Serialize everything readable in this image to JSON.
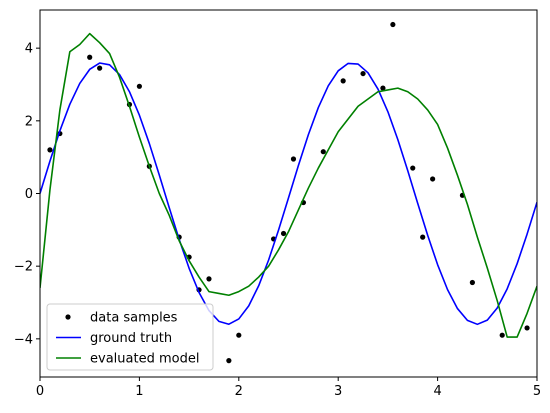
{
  "chart_data": {
    "type": "line",
    "title": "",
    "xlabel": "",
    "ylabel": "",
    "xlim": [
      0,
      5
    ],
    "ylim": [
      -5.05,
      5.05
    ],
    "xticks": [
      "0",
      "1",
      "2",
      "3",
      "4",
      "5"
    ],
    "yticks": [
      "−4",
      "−2",
      "0",
      "2",
      "4"
    ],
    "grid": false,
    "legend_position": "bottom-left",
    "series": [
      {
        "name": "data samples",
        "kind": "scatter",
        "color": "#000000",
        "x": [
          0.1,
          0.2,
          0.5,
          0.6,
          0.9,
          1.0,
          1.1,
          1.4,
          1.5,
          1.6,
          1.7,
          1.9,
          2.0,
          2.35,
          2.45,
          2.55,
          2.65,
          2.85,
          3.05,
          3.25,
          3.45,
          3.55,
          3.75,
          3.85,
          3.95,
          4.25,
          4.35,
          4.65,
          4.9
        ],
        "y": [
          1.2,
          1.65,
          3.75,
          3.45,
          2.45,
          2.95,
          0.75,
          -1.2,
          -1.75,
          -2.65,
          -2.35,
          -4.6,
          -3.9,
          -1.25,
          -1.1,
          0.95,
          -0.25,
          1.15,
          3.1,
          3.3,
          2.9,
          4.65,
          0.7,
          -1.2,
          0.4,
          -0.05,
          -2.45,
          -3.9,
          -3.7
        ]
      },
      {
        "name": "ground truth",
        "kind": "line",
        "color": "#0000ff",
        "function": "3.6*sin(1/0.4*x)",
        "x_range": [
          0,
          5
        ],
        "samples": 51
      },
      {
        "name": "evaluated model",
        "kind": "line",
        "color": "#008000",
        "x": [
          0,
          0.1,
          0.2,
          0.3,
          0.4,
          0.5,
          0.6,
          0.7,
          0.8,
          0.9,
          1.0,
          1.1,
          1.2,
          1.3,
          1.4,
          1.5,
          1.6,
          1.7,
          1.8,
          1.9,
          2.0,
          2.1,
          2.2,
          2.3,
          2.4,
          2.5,
          2.6,
          2.7,
          2.8,
          2.9,
          3.0,
          3.1,
          3.2,
          3.3,
          3.4,
          3.5,
          3.6,
          3.7,
          3.8,
          3.9,
          4.0,
          4.1,
          4.2,
          4.3,
          4.4,
          4.5,
          4.6,
          4.7,
          4.8,
          4.9,
          5.0
        ],
        "y": [
          -2.6,
          0.1,
          2.3,
          3.9,
          4.1,
          4.4,
          4.15,
          3.85,
          3.2,
          2.4,
          1.55,
          0.75,
          0.0,
          -0.6,
          -1.3,
          -1.85,
          -2.3,
          -2.7,
          -2.75,
          -2.8,
          -2.7,
          -2.55,
          -2.3,
          -2.0,
          -1.55,
          -1.05,
          -0.45,
          0.15,
          0.7,
          1.2,
          1.7,
          2.05,
          2.4,
          2.6,
          2.8,
          2.85,
          2.9,
          2.8,
          2.6,
          2.3,
          1.9,
          1.25,
          0.5,
          -0.3,
          -1.2,
          -2.05,
          -2.95,
          -3.95,
          -3.95,
          -3.3,
          -2.55
        ]
      }
    ]
  }
}
